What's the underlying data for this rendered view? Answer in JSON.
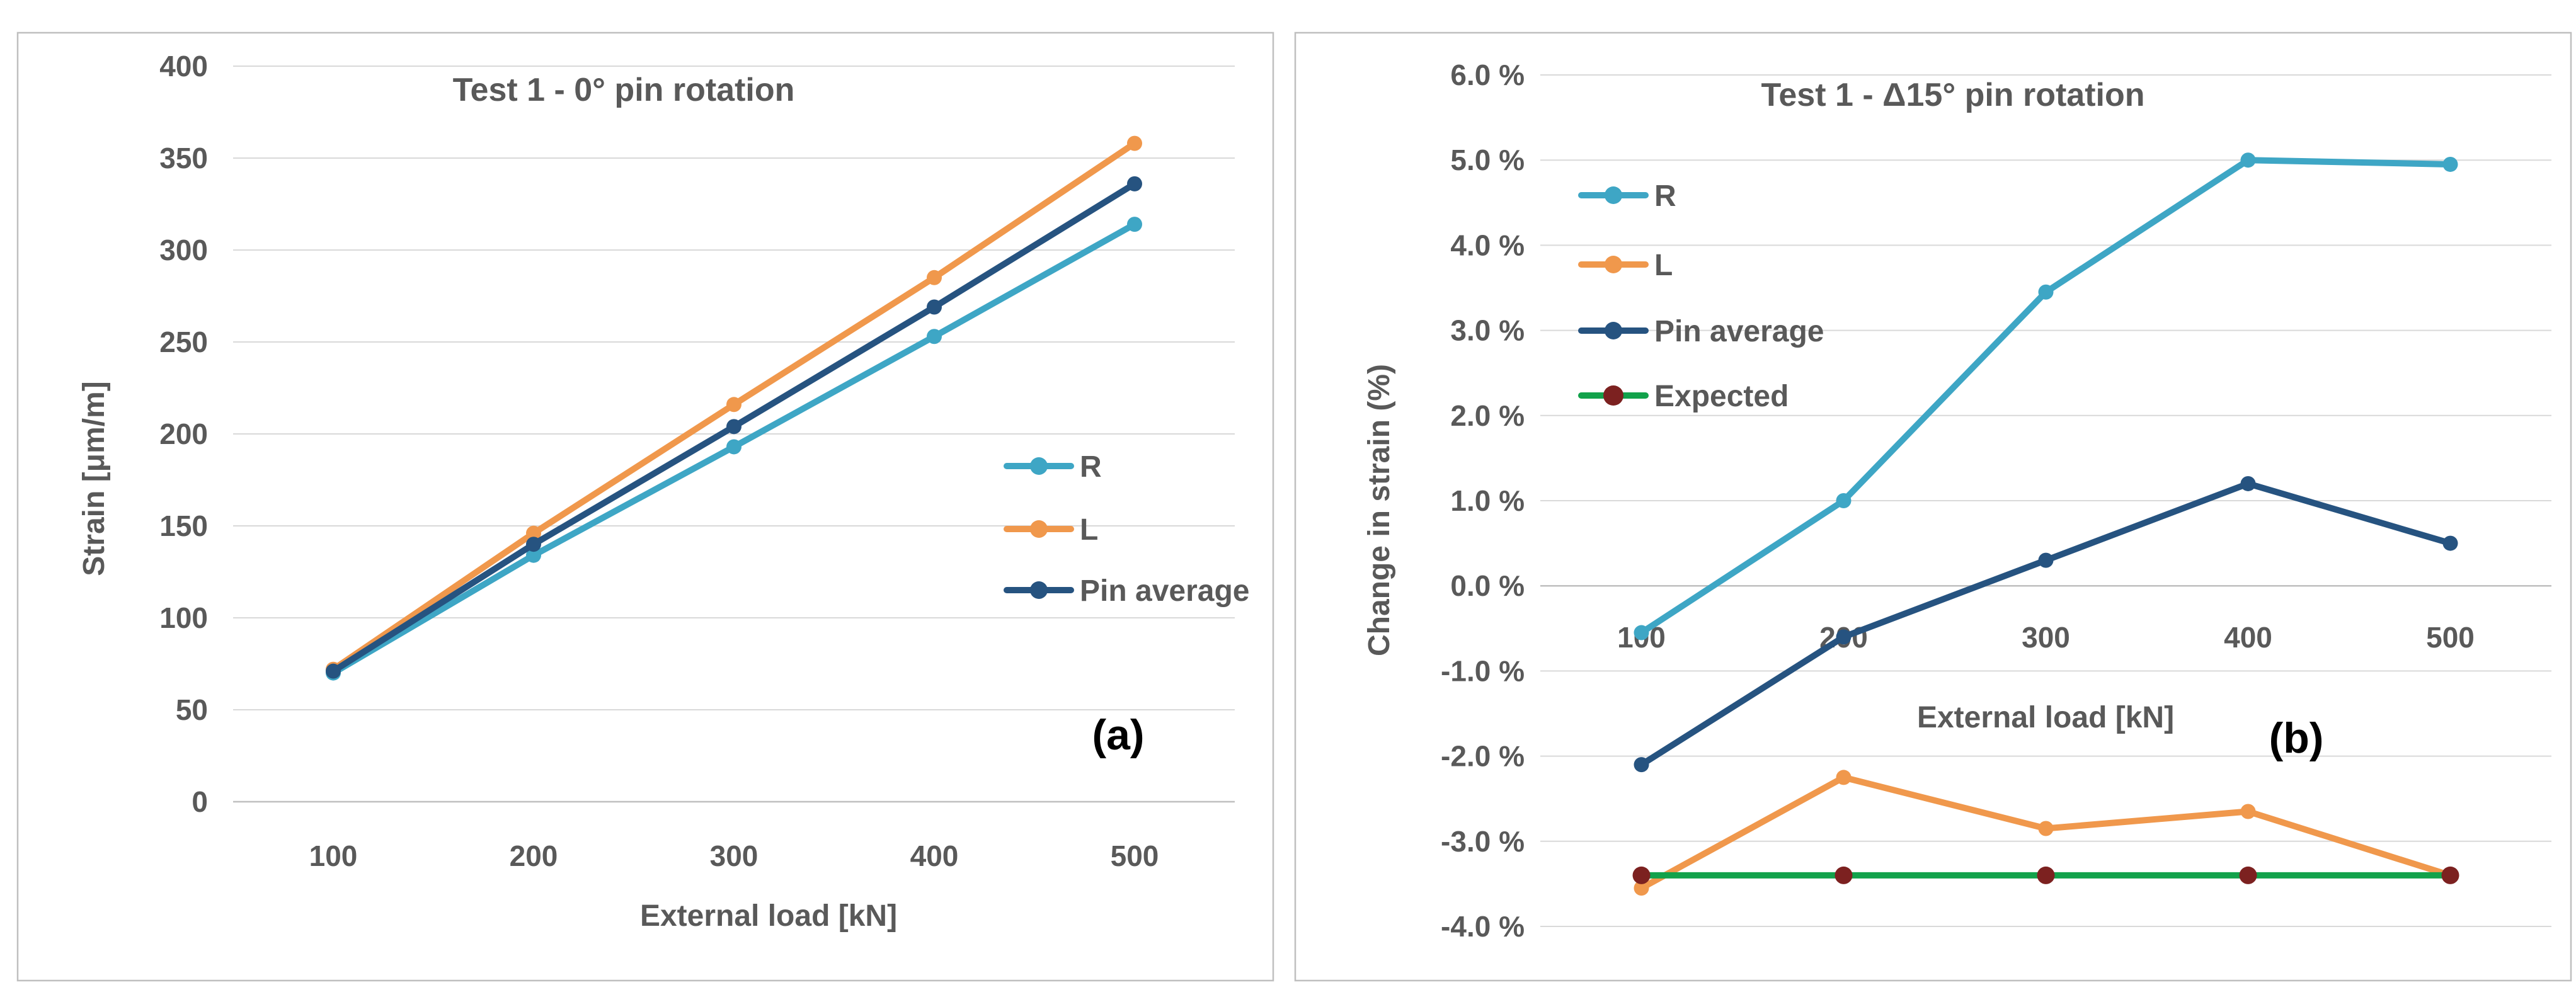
{
  "figure": {
    "background": "#ffffff",
    "panel_a_corner_label": "(a)",
    "panel_b_corner_label": "(b)"
  },
  "colors": {
    "text": "#595959",
    "gridline": "#d9d9d9",
    "axis_line": "#bfbfbf",
    "panel_border": "#bfbfbf",
    "series_r": "#3ea6c5",
    "series_l": "#f0984c",
    "series_pin_average": "#265380",
    "series_expected_line": "#12a24b",
    "series_expected_marker": "#7c2120"
  },
  "chart_data": [
    {
      "id": "a",
      "type": "line",
      "title": "Test 1 - 0° pin rotation",
      "xlabel": "External load [kN]",
      "ylabel": "Strain [μm/m]",
      "corner_label": "(a)",
      "categories": [
        "100",
        "200",
        "300",
        "400",
        "500"
      ],
      "ylim": [
        0,
        400
      ],
      "yticks": [
        400,
        350,
        300,
        250,
        200,
        150,
        100,
        50,
        0
      ],
      "ytick_labels": [
        "400",
        "350",
        "300",
        "250",
        "200",
        "150",
        "100",
        "50",
        "0"
      ],
      "grid": true,
      "legend_position": "inside-right",
      "series": [
        {
          "name": "R",
          "color": "#3ea6c5",
          "values": [
            70,
            134,
            193,
            253,
            314
          ]
        },
        {
          "name": "L",
          "color": "#f0984c",
          "values": [
            72,
            146,
            216,
            285,
            358
          ]
        },
        {
          "name": "Pin average",
          "color": "#265380",
          "values": [
            71,
            140,
            204,
            269,
            336
          ]
        }
      ]
    },
    {
      "id": "b",
      "type": "line",
      "title": "Test 1 - Δ15° pin rotation",
      "xlabel": "External load [kN]",
      "ylabel": "Change in strain (%)",
      "corner_label": "(b)",
      "categories": [
        "100",
        "200",
        "300",
        "400",
        "500"
      ],
      "ylim": [
        -4,
        6
      ],
      "yticks": [
        6,
        5,
        4,
        3,
        2,
        1,
        0,
        -1,
        -2,
        -3,
        -4
      ],
      "ytick_labels": [
        "6.0 %",
        "5.0 %",
        "4.0 %",
        "3.0 %",
        "2.0 %",
        "1.0 %",
        "0.0 %",
        "-1.0 %",
        "-2.0 %",
        "-3.0 %",
        "-4.0 %"
      ],
      "grid": true,
      "legend_position": "inside-left",
      "series": [
        {
          "name": "R",
          "color": "#3ea6c5",
          "values": [
            -0.55,
            1.0,
            3.45,
            5.0,
            4.95
          ]
        },
        {
          "name": "L",
          "color": "#f0984c",
          "values": [
            -3.55,
            -2.25,
            -2.85,
            -2.65,
            -3.4
          ]
        },
        {
          "name": "Pin average",
          "color": "#265380",
          "values": [
            -2.1,
            -0.6,
            0.3,
            1.2,
            0.5
          ]
        },
        {
          "name": "Expected",
          "color": "#12a24b",
          "marker_color": "#7c2120",
          "values": [
            -3.4,
            -3.4,
            -3.4,
            -3.4,
            -3.4
          ]
        }
      ]
    }
  ]
}
